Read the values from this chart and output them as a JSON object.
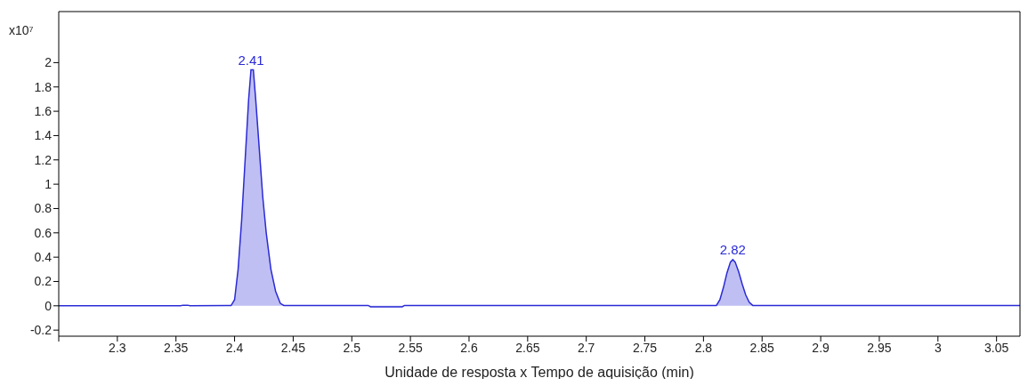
{
  "chart_data": {
    "type": "area",
    "xlabel": "Unidade de resposta x Tempo de aquisição (min)",
    "ylabel": "x10⁷",
    "x": [
      2.25,
      2.354,
      2.356,
      2.36,
      2.362,
      2.397,
      2.4,
      2.403,
      2.406,
      2.409,
      2.412,
      2.414,
      2.416,
      2.418,
      2.421,
      2.424,
      2.427,
      2.431,
      2.435,
      2.439,
      2.442,
      2.514,
      2.516,
      2.543,
      2.545,
      2.811,
      2.814,
      2.817,
      2.82,
      2.823,
      2.825,
      2.827,
      2.83,
      2.833,
      2.836,
      2.839,
      2.842,
      3.07
    ],
    "series": [
      {
        "color": "#2a2ad6",
        "values": [
          0,
          0,
          0.005,
          0.005,
          0,
          0.002,
          0.05,
          0.3,
          0.7,
          1.2,
          1.7,
          1.94,
          1.94,
          1.7,
          1.3,
          0.9,
          0.6,
          0.3,
          0.12,
          0.02,
          0.003,
          0.003,
          -0.008,
          -0.008,
          0.003,
          0.003,
          0.05,
          0.15,
          0.27,
          0.36,
          0.38,
          0.36,
          0.28,
          0.18,
          0.09,
          0.03,
          0.003,
          0.003
        ]
      }
    ],
    "annotations": [
      {
        "text": "2.41",
        "x": 2.414,
        "y": 1.94
      },
      {
        "text": "2.82",
        "x": 2.825,
        "y": 0.38
      }
    ],
    "xlim": [
      2.25,
      3.07
    ],
    "xticks": [
      {
        "value": 2.25,
        "label": null
      },
      2.3,
      2.35,
      2.4,
      2.45,
      2.5,
      2.55,
      2.6,
      2.65,
      2.7,
      2.75,
      2.8,
      2.85,
      2.9,
      2.95,
      3,
      3.05
    ],
    "ylim": [
      -0.25,
      2.42
    ],
    "yticks": [
      -0.2,
      0,
      0.2,
      0.4,
      0.6,
      0.8,
      1,
      1.2,
      1.4,
      1.6,
      1.8,
      2
    ],
    "grid": false,
    "legend": false
  }
}
